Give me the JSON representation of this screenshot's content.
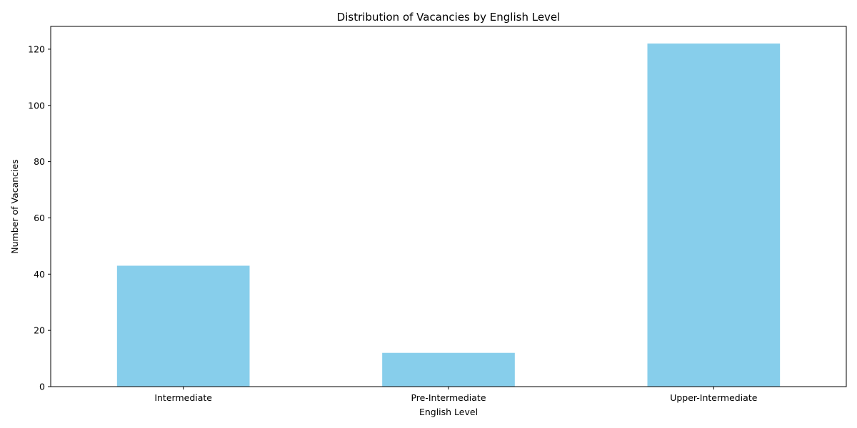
{
  "chart_data": {
    "type": "bar",
    "title": "Distribution of Vacancies by English Level",
    "xlabel": "English Level",
    "ylabel": "Number of Vacancies",
    "categories": [
      "Intermediate",
      "Pre-Intermediate",
      "Upper-Intermediate"
    ],
    "values": [
      43,
      12,
      122
    ],
    "ylim": [
      0,
      128.1
    ],
    "yticks": [
      0,
      20,
      40,
      60,
      80,
      100,
      120
    ],
    "bar_color": "#87CEEB",
    "grid": false,
    "legend": "none"
  }
}
